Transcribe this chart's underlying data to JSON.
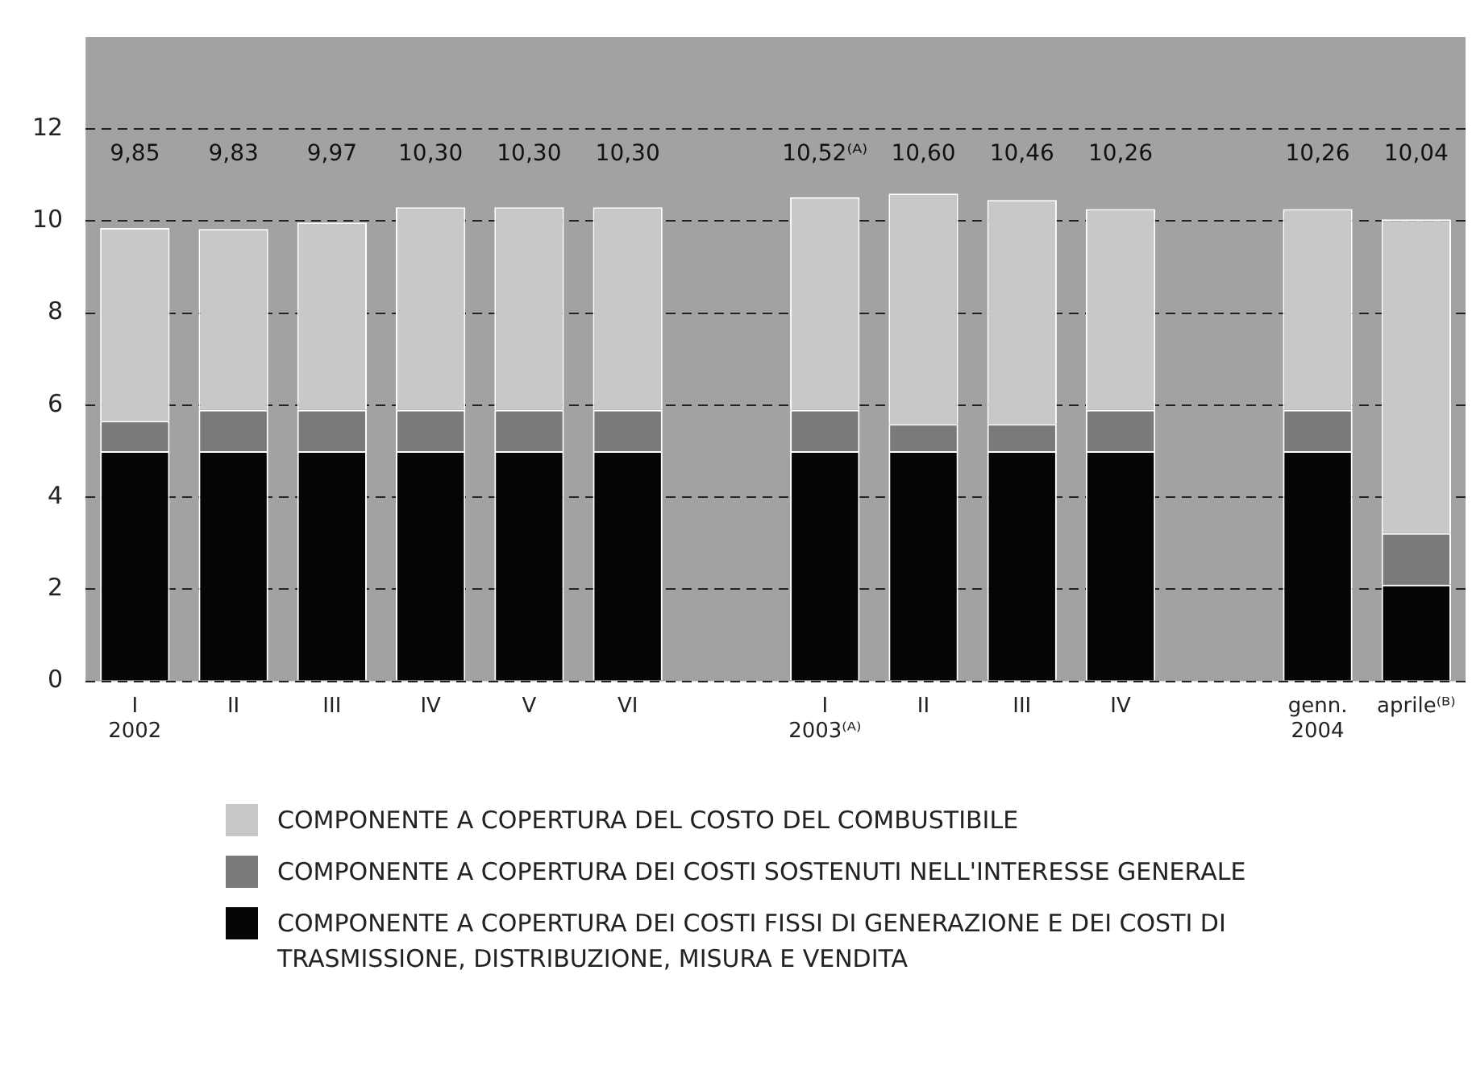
{
  "chart_data": {
    "type": "bar",
    "stacked": true,
    "categories": [
      "I\n2002",
      "II",
      "III",
      "IV",
      "V",
      "VI",
      null,
      "I\n2003⁽ᴬ⁾",
      "II",
      "III",
      "IV",
      null,
      "genn.\n2004",
      "aprile⁽ᴮ⁾"
    ],
    "series": [
      {
        "name": "COMPONENTE A COPERTURA DEI COSTI FISSI DI GENERAZIONE E DEI COSTI DI TRASMISSIONE, DISTRIBUZIONE, MISURA E VENDITA",
        "color": "#050505",
        "values": [
          5.0,
          5.0,
          5.0,
          5.0,
          5.0,
          5.0,
          null,
          5.0,
          5.0,
          5.0,
          5.0,
          null,
          5.0,
          2.1
        ]
      },
      {
        "name": "COMPONENTE A COPERTURA DEI COSTI SOSTENUTI NELL'INTERESSE GENERALE",
        "color": "#7a7a7a",
        "values": [
          0.66,
          0.9,
          0.9,
          0.9,
          0.9,
          0.9,
          null,
          0.9,
          0.59,
          0.59,
          0.9,
          null,
          0.9,
          1.12
        ]
      },
      {
        "name": "COMPONENTE A COPERTURA DEL COSTO DEL COMBUSTIBILE",
        "color": "#c8c8c8",
        "values": [
          4.19,
          3.93,
          4.07,
          4.4,
          4.4,
          4.4,
          null,
          4.62,
          5.01,
          4.87,
          4.36,
          null,
          4.36,
          6.82
        ]
      }
    ],
    "totals": [
      "9,85",
      "9,83",
      "9,97",
      "10,30",
      "10,30",
      "10,30",
      null,
      "10,52⁽ᴬ⁾",
      "10,60",
      "10,46",
      "10,26",
      null,
      "10,26",
      "10,04"
    ],
    "ylim": [
      0,
      14
    ],
    "yticks": [
      0,
      2,
      4,
      6,
      8,
      10,
      12
    ],
    "grid": "y",
    "legend": "bottom"
  }
}
